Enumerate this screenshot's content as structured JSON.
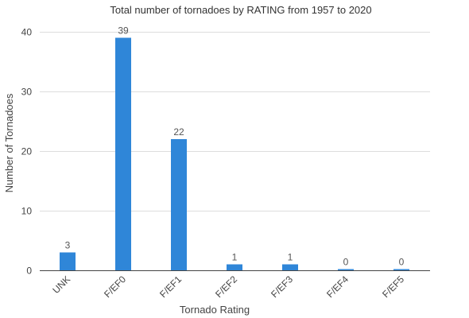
{
  "chart_data": {
    "type": "bar",
    "title": "Total number of tornadoes by RATING from 1957 to 2020",
    "xlabel": "Tornado Rating",
    "ylabel": "Number of Tornadoes",
    "categories": [
      "UNK",
      "F/EF0",
      "F/EF1",
      "F/EF2",
      "F/EF3",
      "F/EF4",
      "F/EF5"
    ],
    "values": [
      3,
      39,
      22,
      1,
      1,
      0,
      0
    ],
    "data_labels": [
      "3",
      "39",
      "22",
      "1",
      "1",
      "0",
      "0"
    ],
    "ylim": [
      0,
      40
    ],
    "yticks": [
      0,
      10,
      20,
      30,
      40
    ],
    "grid": true,
    "bar_color": "#2f86d8",
    "legend": "none"
  }
}
